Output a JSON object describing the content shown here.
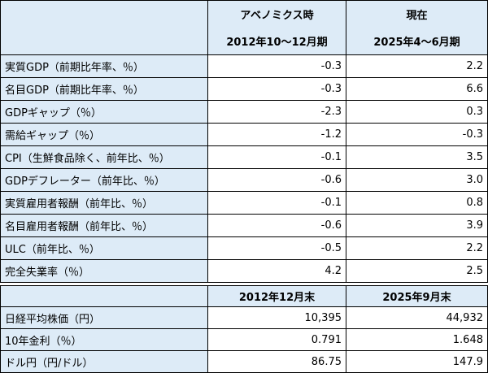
{
  "table1": {
    "header": {
      "columns": [
        "アベノミクス時",
        "現在"
      ],
      "periods": [
        "2012年10～12月期",
        "2025年4～6月期"
      ]
    },
    "rows": [
      [
        "実質GDP（前期比年率、％）",
        "-0.3",
        "2.2"
      ],
      [
        "名目GDP（前期比年率、％）",
        "-0.3",
        "6.6"
      ],
      [
        "GDPギャップ（％）",
        "-2.3",
        "0.3"
      ],
      [
        "需給ギャップ（％）",
        "-1.2",
        "-0.3"
      ],
      [
        "CPI（生鮮食品除く、前年比、％）",
        "-0.1",
        "3.5"
      ],
      [
        "GDPデフレーター（前年比、％）",
        "-0.6",
        "3.0"
      ],
      [
        "実質雇用者報酬（前年比、％）",
        "-0.1",
        "0.8"
      ],
      [
        "名目雇用者報酬（前年比、％）",
        "-0.6",
        "3.9"
      ],
      [
        "ULC（前年比、％）",
        "-0.5",
        "2.2"
      ],
      [
        "完全失業率（％）",
        "4.2",
        "2.5"
      ]
    ]
  },
  "table2": {
    "header": [
      "2012年12月末",
      "2025年9月末"
    ],
    "rows": [
      [
        "日経平均株価（円）",
        "10,395",
        "44,932"
      ],
      [
        "10年金利（％）",
        "0.791",
        "1.648"
      ],
      [
        "ドル円（円/ドル）",
        "86.75",
        "147.9"
      ]
    ]
  }
}
